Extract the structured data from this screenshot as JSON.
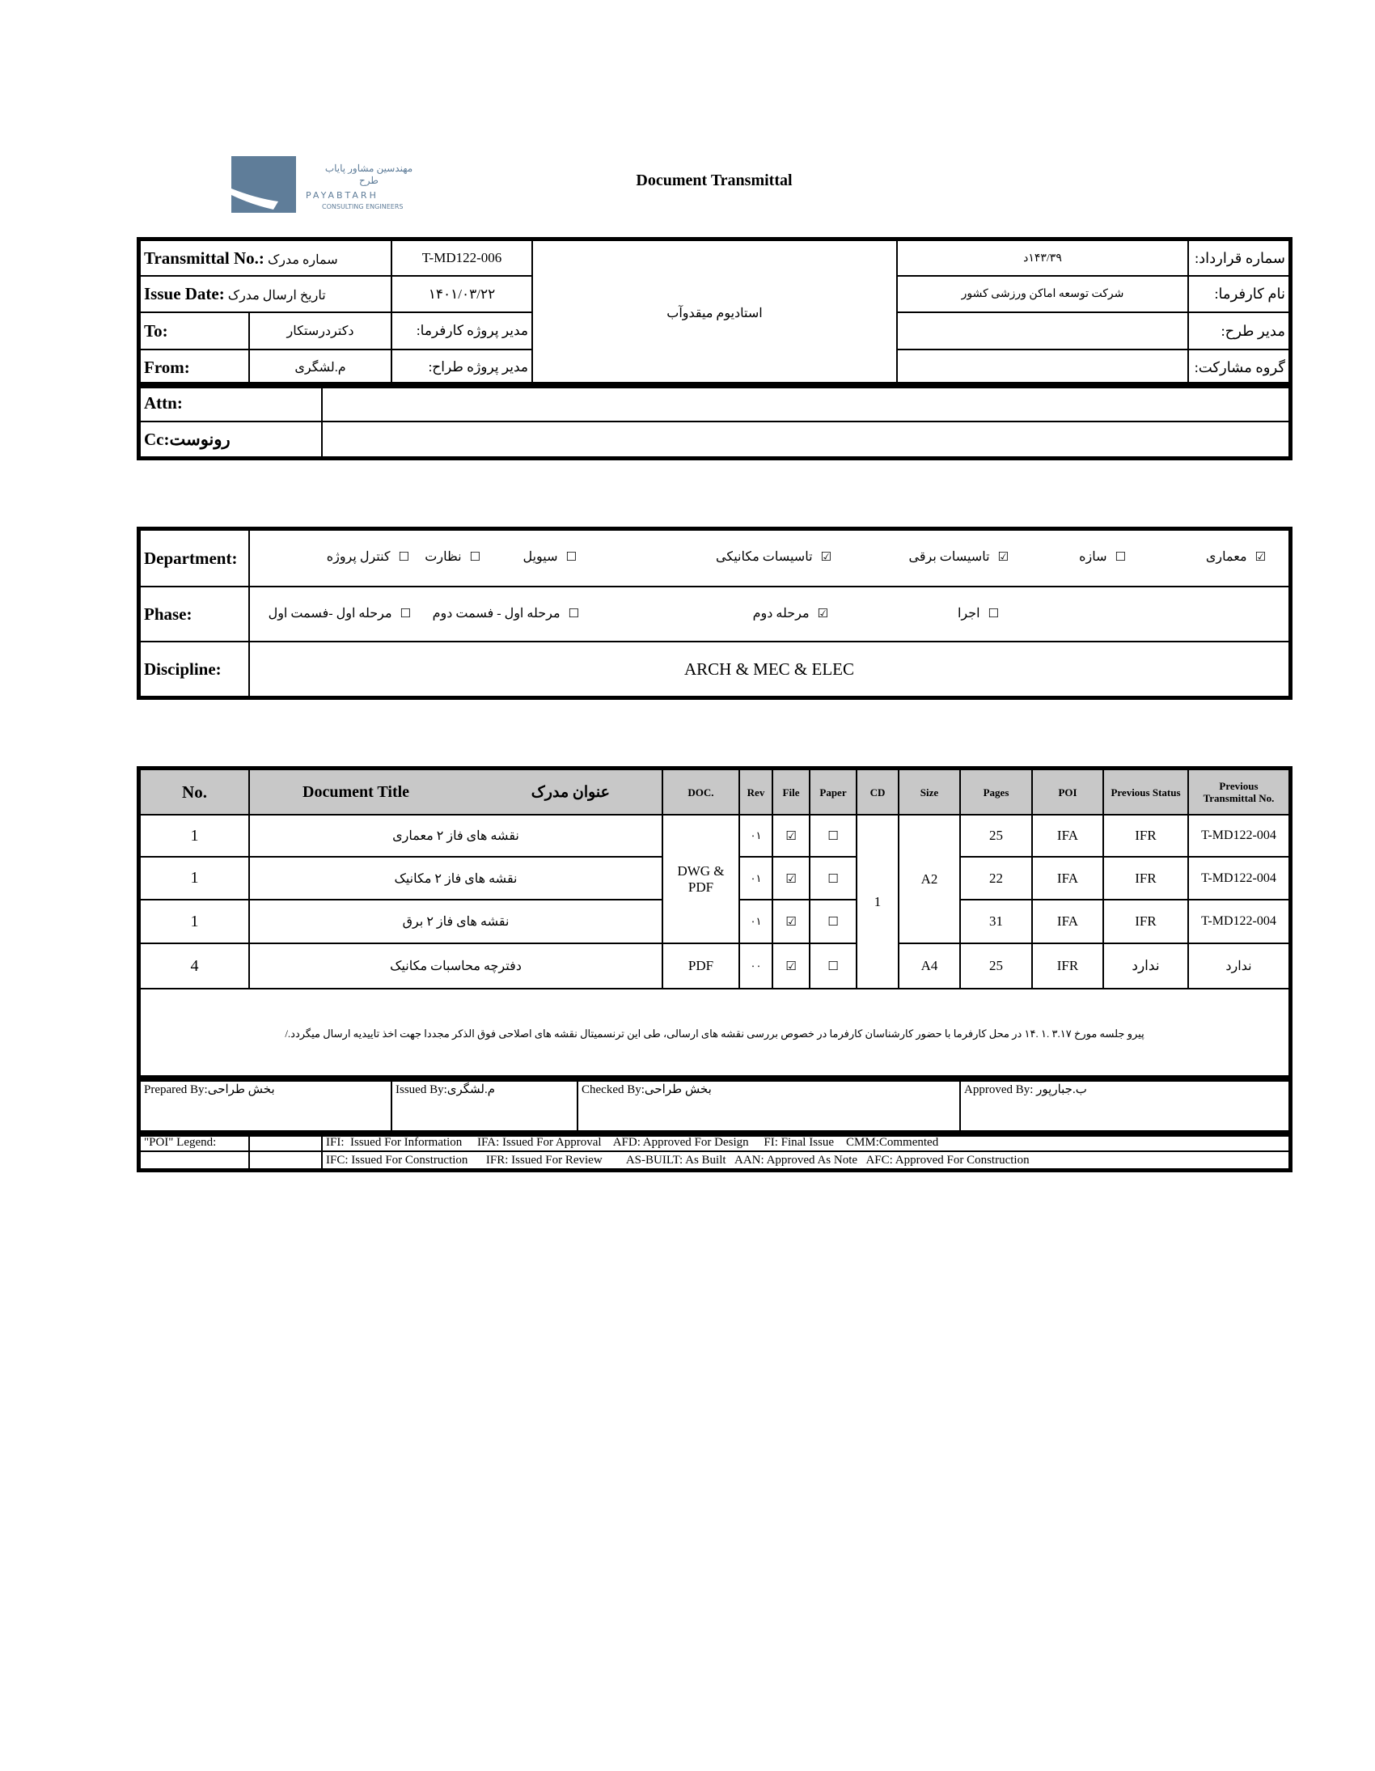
{
  "logo": {
    "fa": "مهندسین مشاور پایاب طرح",
    "name": "PAYABTARH",
    "sub": "CONSULTING ENGINEERS",
    "color": "#5f7d99"
  },
  "title": "Document Transmittal",
  "header": {
    "transmittal_label": "Transmittal No.:",
    "transmittal_label_fa": "سماره مدرک",
    "transmittal_no": "T-MD122-006",
    "issue_label": "Issue Date:",
    "issue_label_fa": "تاریخ ارسال مدرک",
    "issue_date": "۱۴۰۱/۰۳/۲۲",
    "to_label": "To:",
    "to_value": "دکتردرستکار",
    "client_pm_label": "مدیر پروژه کارفرما:",
    "from_label": "From:",
    "from_value": "م.لشگری",
    "designer_pm_label": "مدیر پروژه طراح:",
    "project": "استادیوم میقدوآب",
    "contract_label": "سماره قرارداد:",
    "contract_value": "۱۴۳/۳۹د",
    "client_label": "نام کارفرما:",
    "client_value": "شرکت توسعه اماکن ورزشی کشور",
    "plan_manager_label": "مدیر طرح:",
    "plan_manager_value": "",
    "partner_label": "گروه مشارکت:",
    "partner_value": "",
    "attn_label": "Attn:",
    "attn_value": "",
    "cc_label": "Cc:رونوست",
    "cc_value": ""
  },
  "department": {
    "label": "Department:",
    "items": [
      {
        "label": "معماری",
        "checked": true
      },
      {
        "label": "سازه",
        "checked": false
      },
      {
        "label": "تاسیسات برقی",
        "checked": true
      },
      {
        "label": "تاسیسات مکانیکی",
        "checked": true
      },
      {
        "label": "سیویل",
        "checked": false
      },
      {
        "label": "نظارت",
        "checked": false
      },
      {
        "label": "کنترل پروژه",
        "checked": false
      }
    ]
  },
  "phase": {
    "label": "Phase:",
    "items": [
      {
        "label": "اجرا",
        "checked": false
      },
      {
        "label": "مرحله دوم",
        "checked": true
      },
      {
        "label": "مرحله اول - فسمت دوم",
        "checked": false
      },
      {
        "label": "مرحله اول -فسمت اول",
        "checked": false
      }
    ]
  },
  "discipline": {
    "label": "Discipline:",
    "value": "ARCH & MEC & ELEC"
  },
  "documents": {
    "headers": {
      "no": "No.",
      "title_en": "Document Title",
      "title_fa": "عنوان مدرک",
      "doc": "DOC.",
      "rev": "Rev",
      "file": "File",
      "paper": "Paper",
      "cd": "CD",
      "size": "Size",
      "pages": "Pages",
      "poi": "POI",
      "prev_status": "Previous Status",
      "prev_no": "Previous Transmittal No."
    },
    "rows": [
      {
        "no": "1",
        "title": "نقشه های فاز ۲ معماری",
        "rev": "۰۱",
        "file": "☑",
        "paper": "☐",
        "pages": "25",
        "poi": "IFA",
        "prev_status": "IFR",
        "prev_no": "T-MD122-004"
      },
      {
        "no": "1",
        "title": "نقشه های فاز ۲ مکانیک",
        "rev": "۰۱",
        "file": "☑",
        "paper": "☐",
        "pages": "22",
        "poi": "IFA",
        "prev_status": "IFR",
        "prev_no": "T-MD122-004"
      },
      {
        "no": "1",
        "title": "نقشه های فاز ۲ برق",
        "rev": "۰۱",
        "file": "☑",
        "paper": "☐",
        "pages": "31",
        "poi": "IFA",
        "prev_status": "IFR",
        "prev_no": "T-MD122-004"
      },
      {
        "no": "4",
        "title": "دفترچه محاسبات مکانیک",
        "rev": "۰۰",
        "file": "☑",
        "paper": "☐",
        "pages": "25",
        "poi": "IFR",
        "prev_status": "ندارد",
        "prev_no": "ندارد"
      }
    ],
    "doc_group": "DWG & PDF",
    "doc_last": "PDF",
    "cd": "1",
    "size_group": "A2",
    "size_last": "A4"
  },
  "note": "پیرو جلسه مورخ ۳.۱۷ .۱ .۱۴ در محل کارفرما با حضور کارشناسان کارفرما در خصوص بررسی نقشه های ارسالی، طی این ترنسمیتال نقشه های اصلاحی فوق الذکر مجددا جهت اخذ تاییدیه ارسال میگردد./",
  "signatures": {
    "prepared": "Prepared By:بخش طراحی",
    "issued": "Issued By:م.لشگری",
    "checked": "Checked By:بخش طراحی",
    "approved": "Approved By: ب.جبارپور"
  },
  "legend": {
    "label": "\"POI\" Legend:",
    "line1": "IFI:  Issued For Information     IFA: Issued For Approval    AFD: Approved For Design     FI: Final Issue    CMM:Commented",
    "line2": "IFC: Issued For Construction      IFR: Issued For Review        AS-BUILT: As Built   AAN: Approved As Note   AFC: Approved For Construction"
  }
}
